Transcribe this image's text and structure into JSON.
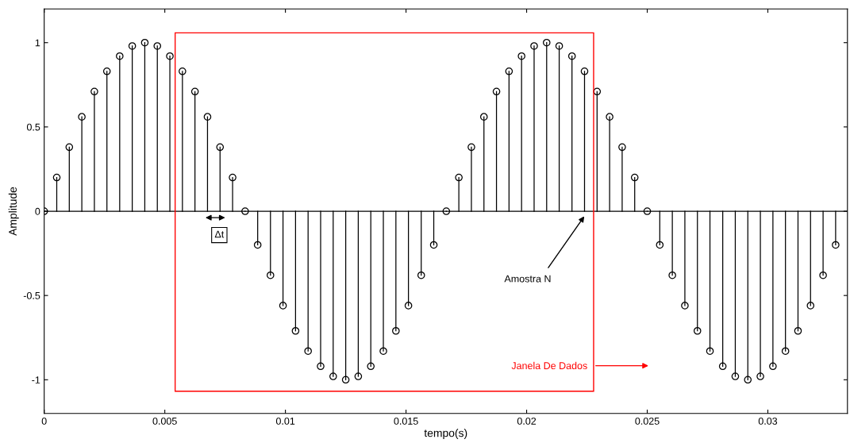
{
  "chart_data": {
    "type": "lollipop",
    "xlabel": "tempo(s)",
    "ylabel": "Amplitude",
    "x": [
      0,
      0.00052,
      0.00104,
      0.00156,
      0.00208,
      0.0026,
      0.00313,
      0.00365,
      0.00417,
      0.00469,
      0.00521,
      0.00573,
      0.00625,
      0.00677,
      0.00729,
      0.00781,
      0.00833,
      0.00885,
      0.00938,
      0.0099,
      0.01042,
      0.01094,
      0.01146,
      0.01198,
      0.0125,
      0.01302,
      0.01354,
      0.01406,
      0.01458,
      0.0151,
      0.01563,
      0.01615,
      0.01667,
      0.01719,
      0.01771,
      0.01823,
      0.01875,
      0.01927,
      0.01979,
      0.02031,
      0.02083,
      0.02135,
      0.02188,
      0.0224,
      0.02292,
      0.02344,
      0.02396,
      0.02448,
      0.025,
      0.02552,
      0.02604,
      0.02656,
      0.02708,
      0.0276,
      0.02813,
      0.02865,
      0.02917,
      0.02969,
      0.03021,
      0.03073,
      0.03125,
      0.03177,
      0.03229,
      0.03281
    ],
    "series": [
      {
        "color": "#000000",
        "values": [
          0,
          0.2,
          0.38,
          0.56,
          0.71,
          0.83,
          0.92,
          0.98,
          1,
          0.98,
          0.92,
          0.83,
          0.71,
          0.56,
          0.38,
          0.2,
          0,
          -0.2,
          -0.38,
          -0.56,
          -0.71,
          -0.83,
          -0.92,
          -0.98,
          -1,
          -0.98,
          -0.92,
          -0.83,
          -0.71,
          -0.56,
          -0.38,
          -0.2,
          0,
          0.2,
          0.38,
          0.56,
          0.71,
          0.83,
          0.92,
          0.98,
          1,
          0.98,
          0.92,
          0.83,
          0.71,
          0.56,
          0.38,
          0.2,
          0,
          -0.2,
          -0.38,
          -0.56,
          -0.71,
          -0.83,
          -0.92,
          -0.98,
          -1,
          -0.98,
          -0.92,
          -0.83,
          -0.71,
          -0.56,
          -0.38,
          -0.2
        ]
      }
    ],
    "marker": "circle",
    "xlim": [
      0,
      0.0333
    ],
    "xticks": [
      0,
      0.005,
      0.01,
      0.015,
      0.02,
      0.025,
      0.03
    ],
    "ylim": [
      -1.2,
      1.2
    ],
    "yticks": [
      -1,
      -0.5,
      0,
      0.5,
      1
    ],
    "ref_lines": [
      {
        "axis": "y",
        "value": 0,
        "color": "#000000"
      }
    ],
    "annotations": [
      "Δt",
      "Amostra N",
      "Janela De Dados"
    ]
  }
}
